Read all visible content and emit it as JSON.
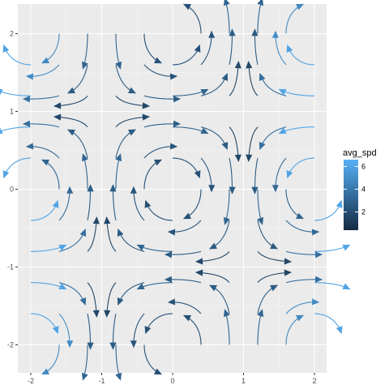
{
  "chart_data": {
    "type": "vector-field",
    "title": "",
    "xlabel": "",
    "ylabel": "",
    "xlim": [
      -2.2,
      2.2
    ],
    "ylim": [
      -2.3,
      2.3
    ],
    "x_ticks": [
      -2,
      -1,
      0,
      1,
      2
    ],
    "y_ticks": [
      -2,
      -1,
      0,
      1,
      2
    ],
    "x_tick_labels": [
      "-2",
      "-1",
      "0",
      "1",
      "2"
    ],
    "y_tick_labels": [
      "-2",
      "-1",
      "0",
      "1",
      "2"
    ],
    "grid": true,
    "legend": {
      "title": "avg_spd",
      "position": "right",
      "range": [
        0.4,
        6.6
      ],
      "breaks": [
        2,
        4,
        6
      ],
      "labels": [
        "2",
        "4",
        "6"
      ],
      "low_color": "#132B43",
      "high_color": "#56B1F7"
    },
    "grid_x": [
      -2,
      -1.6,
      -1.2,
      -0.8,
      -0.4,
      0,
      0.4,
      0.8,
      1.2,
      1.6,
      2
    ],
    "grid_y": [
      -2,
      -1.6,
      -1.2,
      -0.8,
      -0.4,
      0,
      0.4,
      0.8,
      1.2,
      1.6,
      2
    ],
    "field": "u = cos(pi*x/2)*sin(pi*y/2); v = -sin(pi*x/2)*cos(pi*y/2); streamline arrows, color = avg_spd"
  },
  "colors": {
    "panel_background": "#EBEBEB",
    "grid_major": "#FFFFFF",
    "grid_minor": "#F5F5F5"
  }
}
